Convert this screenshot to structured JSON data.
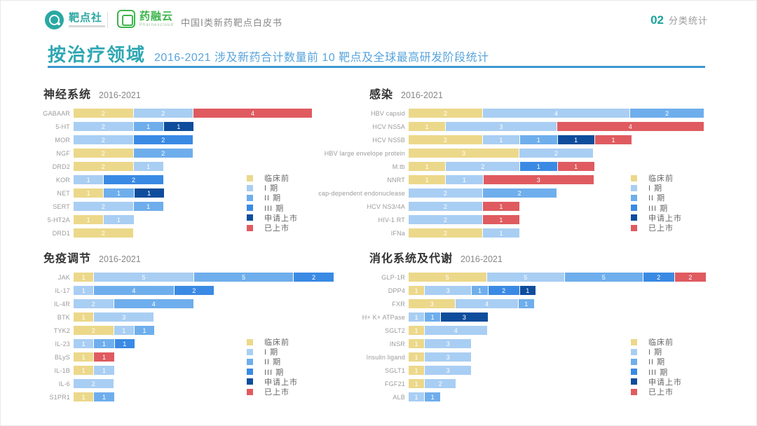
{
  "header": {
    "brand1_name": "靶点社",
    "brand2_name": "药融云",
    "brand2_tagline": "Pharnexcloud",
    "document_title": "中国Ⅰ类新药靶点白皮书",
    "page_number": "02",
    "page_section": "分类统计"
  },
  "title": {
    "main": "按治疗领域",
    "subtitle": "2016-2021 涉及新药合计数量前 10 靶点及全球最高研发阶段统计"
  },
  "legend": {
    "position": "right-of-bars",
    "items": [
      {
        "key": "pre",
        "label": "临床前",
        "color": "#ECD88A"
      },
      {
        "key": "p1",
        "label": "I 期",
        "color": "#A9CEF3"
      },
      {
        "key": "p2",
        "label": "II 期",
        "color": "#6FAEEC"
      },
      {
        "key": "p3",
        "label": "III 期",
        "color": "#3A8AE4"
      },
      {
        "key": "nda",
        "label": "申请上市",
        "color": "#0E4D9C"
      },
      {
        "key": "marketed",
        "label": "已上市",
        "color": "#DF5B60"
      }
    ]
  },
  "chart_data": [
    {
      "type": "bar",
      "orientation": "horizontal",
      "stacked": true,
      "grid": false,
      "title": "神经系统",
      "period": "2016-2021",
      "xlim": [
        0,
        8
      ],
      "rows": [
        {
          "label": "GABAAR",
          "segments": [
            {
              "stage": "pre",
              "value": 2
            },
            {
              "stage": "p1",
              "value": 2
            },
            {
              "stage": "marketed",
              "value": 4
            }
          ]
        },
        {
          "label": "5-HT",
          "segments": [
            {
              "stage": "p1",
              "value": 2
            },
            {
              "stage": "p2",
              "value": 1
            },
            {
              "stage": "nda",
              "value": 1
            }
          ]
        },
        {
          "label": "MOR",
          "segments": [
            {
              "stage": "p1",
              "value": 2
            },
            {
              "stage": "p3",
              "value": 2
            }
          ]
        },
        {
          "label": "NGF",
          "segments": [
            {
              "stage": "pre",
              "value": 2
            },
            {
              "stage": "p2",
              "value": 2
            }
          ]
        },
        {
          "label": "DRD2",
          "segments": [
            {
              "stage": "pre",
              "value": 2
            },
            {
              "stage": "p1",
              "value": 1
            }
          ]
        },
        {
          "label": "KOR",
          "segments": [
            {
              "stage": "p1",
              "value": 1
            },
            {
              "stage": "p3",
              "value": 2
            }
          ]
        },
        {
          "label": "NET",
          "segments": [
            {
              "stage": "pre",
              "value": 1
            },
            {
              "stage": "p2",
              "value": 1
            },
            {
              "stage": "nda",
              "value": 1
            }
          ]
        },
        {
          "label": "SERT",
          "segments": [
            {
              "stage": "p1",
              "value": 2
            },
            {
              "stage": "p2",
              "value": 1
            }
          ]
        },
        {
          "label": "5-HT2A",
          "segments": [
            {
              "stage": "pre",
              "value": 1
            },
            {
              "stage": "p1",
              "value": 1
            }
          ]
        },
        {
          "label": "DRD1",
          "segments": [
            {
              "stage": "pre",
              "value": 2
            }
          ]
        }
      ]
    },
    {
      "type": "bar",
      "orientation": "horizontal",
      "stacked": true,
      "grid": false,
      "title": "感染",
      "period": "2016-2021",
      "xlim": [
        0,
        8
      ],
      "rows": [
        {
          "label": "HBV capsid",
          "segments": [
            {
              "stage": "pre",
              "value": 2
            },
            {
              "stage": "p1",
              "value": 4
            },
            {
              "stage": "p2",
              "value": 2
            }
          ]
        },
        {
          "label": "HCV NS5A",
          "segments": [
            {
              "stage": "pre",
              "value": 1
            },
            {
              "stage": "p1",
              "value": 3
            },
            {
              "stage": "marketed",
              "value": 4
            }
          ]
        },
        {
          "label": "HCV NS5B",
          "segments": [
            {
              "stage": "pre",
              "value": 2
            },
            {
              "stage": "p1",
              "value": 1
            },
            {
              "stage": "p2",
              "value": 1
            },
            {
              "stage": "nda",
              "value": 1
            },
            {
              "stage": "marketed",
              "value": 1
            }
          ]
        },
        {
          "label": "HBV large envelope protein",
          "segments": [
            {
              "stage": "pre",
              "value": 3
            },
            {
              "stage": "p1",
              "value": 2
            }
          ]
        },
        {
          "label": "M.tb",
          "segments": [
            {
              "stage": "pre",
              "value": 1
            },
            {
              "stage": "p1",
              "value": 2
            },
            {
              "stage": "p3",
              "value": 1
            },
            {
              "stage": "marketed",
              "value": 1
            }
          ]
        },
        {
          "label": "NNRT",
          "segments": [
            {
              "stage": "pre",
              "value": 1
            },
            {
              "stage": "p1",
              "value": 1
            },
            {
              "stage": "marketed",
              "value": 3
            }
          ]
        },
        {
          "label": "cap-dependent endonuclease",
          "segments": [
            {
              "stage": "p1",
              "value": 2
            },
            {
              "stage": "p2",
              "value": 2
            }
          ]
        },
        {
          "label": "HCV NS3/4A",
          "segments": [
            {
              "stage": "p1",
              "value": 2
            },
            {
              "stage": "marketed",
              "value": 1
            }
          ]
        },
        {
          "label": "HIV-1 RT",
          "segments": [
            {
              "stage": "p1",
              "value": 2
            },
            {
              "stage": "marketed",
              "value": 1
            }
          ]
        },
        {
          "label": "IFNa",
          "segments": [
            {
              "stage": "pre",
              "value": 2
            },
            {
              "stage": "p1",
              "value": 1
            }
          ]
        }
      ]
    },
    {
      "type": "bar",
      "orientation": "horizontal",
      "stacked": true,
      "grid": false,
      "title": "免疫调节",
      "period": "2016-2021",
      "xlim": [
        0,
        13
      ],
      "rows": [
        {
          "label": "JAK",
          "segments": [
            {
              "stage": "pre",
              "value": 1
            },
            {
              "stage": "p1",
              "value": 5
            },
            {
              "stage": "p2",
              "value": 5
            },
            {
              "stage": "p3",
              "value": 2
            }
          ]
        },
        {
          "label": "IL-17",
          "segments": [
            {
              "stage": "p1",
              "value": 1
            },
            {
              "stage": "p2",
              "value": 4
            },
            {
              "stage": "p3",
              "value": 2
            }
          ]
        },
        {
          "label": "IL-4R",
          "segments": [
            {
              "stage": "p1",
              "value": 2
            },
            {
              "stage": "p2",
              "value": 4
            }
          ]
        },
        {
          "label": "BTK",
          "segments": [
            {
              "stage": "pre",
              "value": 1
            },
            {
              "stage": "p1",
              "value": 3
            }
          ]
        },
        {
          "label": "TYK2",
          "segments": [
            {
              "stage": "pre",
              "value": 2
            },
            {
              "stage": "p1",
              "value": 1
            },
            {
              "stage": "p2",
              "value": 1
            }
          ]
        },
        {
          "label": "IL-23",
          "segments": [
            {
              "stage": "p1",
              "value": 1
            },
            {
              "stage": "p2",
              "value": 1
            },
            {
              "stage": "p3",
              "value": 1
            }
          ]
        },
        {
          "label": "BLyS",
          "segments": [
            {
              "stage": "pre",
              "value": 1
            },
            {
              "stage": "marketed",
              "value": 1
            }
          ]
        },
        {
          "label": "IL-1B",
          "segments": [
            {
              "stage": "pre",
              "value": 1
            },
            {
              "stage": "p1",
              "value": 1
            }
          ]
        },
        {
          "label": "IL-6",
          "segments": [
            {
              "stage": "p1",
              "value": 2
            }
          ]
        },
        {
          "label": "S1PR1",
          "segments": [
            {
              "stage": "pre",
              "value": 1
            },
            {
              "stage": "p2",
              "value": 1
            }
          ]
        }
      ]
    },
    {
      "type": "bar",
      "orientation": "horizontal",
      "stacked": true,
      "grid": false,
      "title": "消化系统及代谢",
      "period": "2016-2021",
      "xlim": [
        0,
        19
      ],
      "rows": [
        {
          "label": "GLP-1R",
          "segments": [
            {
              "stage": "pre",
              "value": 5
            },
            {
              "stage": "p1",
              "value": 5
            },
            {
              "stage": "p2",
              "value": 5
            },
            {
              "stage": "p3",
              "value": 2
            },
            {
              "stage": "marketed",
              "value": 2
            }
          ]
        },
        {
          "label": "DPP4",
          "segments": [
            {
              "stage": "pre",
              "value": 1
            },
            {
              "stage": "p1",
              "value": 3
            },
            {
              "stage": "p2",
              "value": 1
            },
            {
              "stage": "p3",
              "value": 2
            },
            {
              "stage": "nda",
              "value": 1
            }
          ]
        },
        {
          "label": "FXR",
          "segments": [
            {
              "stage": "pre",
              "value": 3
            },
            {
              "stage": "p1",
              "value": 4
            },
            {
              "stage": "p2",
              "value": 1
            }
          ]
        },
        {
          "label": "H+ K+ ATPase",
          "segments": [
            {
              "stage": "p1",
              "value": 1
            },
            {
              "stage": "p2",
              "value": 1
            },
            {
              "stage": "nda",
              "value": 3
            }
          ]
        },
        {
          "label": "SGLT2",
          "segments": [
            {
              "stage": "pre",
              "value": 1
            },
            {
              "stage": "p1",
              "value": 4
            }
          ]
        },
        {
          "label": "INSR",
          "segments": [
            {
              "stage": "pre",
              "value": 1
            },
            {
              "stage": "p1",
              "value": 3
            }
          ]
        },
        {
          "label": "Insulin ligand",
          "segments": [
            {
              "stage": "pre",
              "value": 1
            },
            {
              "stage": "p1",
              "value": 3
            }
          ]
        },
        {
          "label": "SGLT1",
          "segments": [
            {
              "stage": "pre",
              "value": 1
            },
            {
              "stage": "p1",
              "value": 3
            }
          ]
        },
        {
          "label": "FGF21",
          "segments": [
            {
              "stage": "pre",
              "value": 1
            },
            {
              "stage": "p1",
              "value": 2
            }
          ]
        },
        {
          "label": "ALB",
          "segments": [
            {
              "stage": "p1",
              "value": 1
            },
            {
              "stage": "p2",
              "value": 1
            }
          ]
        }
      ]
    }
  ]
}
